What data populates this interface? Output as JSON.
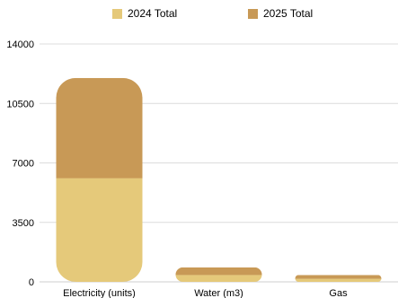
{
  "chart_data": {
    "type": "bar",
    "stacked": true,
    "categories": [
      "Electricity (units)",
      "Water (m3)",
      "Gas"
    ],
    "series": [
      {
        "name": "2024 Total",
        "values": [
          6100,
          400,
          180
        ],
        "color": "#e5c97a"
      },
      {
        "name": "2025 Total",
        "values": [
          5900,
          450,
          220
        ],
        "color": "#c89956"
      }
    ],
    "yticks": [
      "0",
      "3500",
      "7000",
      "10500",
      "14000"
    ],
    "ylim": [
      0,
      14000
    ],
    "grid": true,
    "legend": "top"
  }
}
